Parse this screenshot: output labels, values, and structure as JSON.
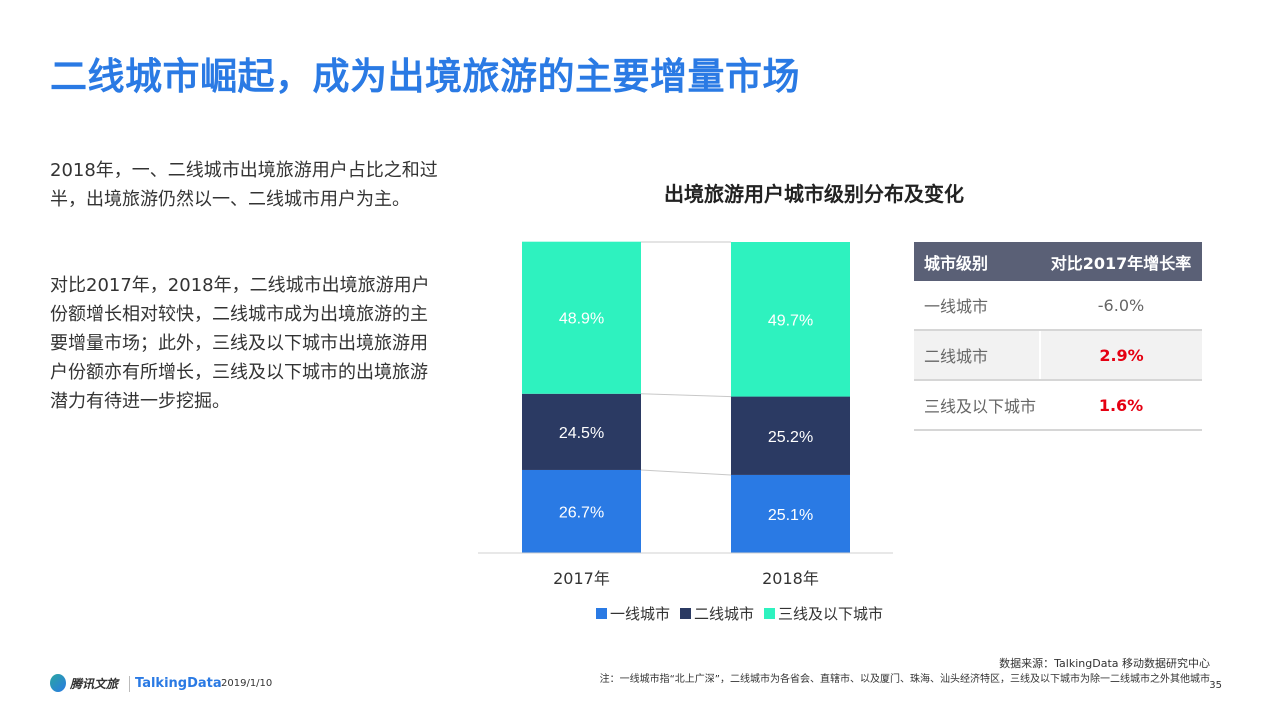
{
  "title": "二线城市崛起，成为出境旅游的主要增量市场",
  "paragraphs": [
    "2018年，一、二线城市出境旅游用户占比之和过半，出境旅游仍然以一、二线城市用户为主。",
    "对比2017年，2018年，二线城市出境旅游用户份额增长相对较快，二线城市成为出境旅游的主要增量市场；此外，三线及以下城市出境旅游用户份额亦有所增长，三线及以下城市的出境旅游潜力有待进一步挖掘。"
  ],
  "chart_data": {
    "type": "bar",
    "stacked": true,
    "percent": true,
    "title": "出境旅游用户城市级别分布及变化",
    "categories": [
      "2017年",
      "2018年"
    ],
    "series": [
      {
        "name": "一线城市",
        "values": [
          26.7,
          25.1
        ],
        "labels": [
          "26.7%",
          "25.1%"
        ],
        "color": "#2a7ae4"
      },
      {
        "name": "二线城市",
        "values": [
          24.5,
          25.2
        ],
        "labels": [
          "24.5%",
          "25.2%"
        ],
        "color": "#2b3a63"
      },
      {
        "name": "三线及以下城市",
        "values": [
          48.9,
          49.7
        ],
        "labels": [
          "48.9%",
          "49.7%"
        ],
        "color": "#2ef2bf"
      }
    ],
    "ylim": [
      0,
      100
    ],
    "legend_position": "bottom",
    "grid": false
  },
  "table": {
    "headers": [
      "城市级别",
      "对比2017年增长率"
    ],
    "rows": [
      {
        "city": "一线城市",
        "rate": "-6.0%"
      },
      {
        "city": "二线城市",
        "rate": "2.9%"
      },
      {
        "city": "三线及以下城市",
        "rate": "1.6%"
      }
    ]
  },
  "footer": {
    "logo1": "腾讯文旅",
    "logo2": "TalkingData",
    "date": "2019/1/10",
    "source": "数据来源：TalkingData 移动数据研究中心",
    "note": "注：一线城市指“北上广深”，二线城市为各省会、直辖市、以及厦门、珠海、汕头经济特区，三线及以下城市为除一二线城市之外其他城市",
    "page": "35"
  }
}
